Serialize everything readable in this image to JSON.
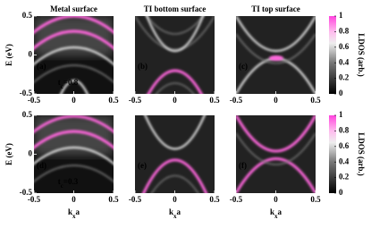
{
  "chart_data": [
    {
      "type": "heatmap",
      "title": "Metal surface",
      "panel_label": "(a)",
      "y_label": "E (eV)",
      "annotation": {
        "base": "t",
        "sub": "c",
        "text": "=0.8"
      },
      "xlim": [
        -0.5,
        0.5
      ],
      "ylim": [
        -0.5,
        0.5
      ],
      "xticks": [
        -0.5,
        0,
        0.5
      ],
      "yticks": [
        -0.5,
        0,
        0.5
      ]
    },
    {
      "type": "heatmap",
      "title": "TI bottom surface",
      "panel_label": "(b)",
      "xlim": [
        -0.5,
        0.5
      ],
      "ylim": [
        -0.5,
        0.5
      ],
      "xticks": [
        -0.5,
        0,
        0.5
      ]
    },
    {
      "type": "heatmap",
      "title": "TI top surface",
      "panel_label": "(c)",
      "xlim": [
        -0.5,
        0.5
      ],
      "ylim": [
        -0.5,
        0.5
      ],
      "xticks": [
        -0.5,
        0,
        0.5
      ],
      "colorbar": {
        "label": "LDOS (arb.)",
        "clim": [
          0,
          1
        ],
        "cticks": [
          0,
          0.2,
          0.4,
          0.6,
          0.8,
          1
        ]
      }
    },
    {
      "type": "heatmap",
      "panel_label": "(d)",
      "y_label": "E (eV)",
      "x_label": {
        "base": "k",
        "sub": "x",
        "tail": "a"
      },
      "annotation": {
        "base": "t",
        "sub": "c",
        "text": "=0.3"
      },
      "xlim": [
        -0.5,
        0.5
      ],
      "ylim": [
        -0.5,
        0.5
      ],
      "xticks": [
        -0.5,
        0,
        0.5
      ],
      "yticks": [
        -0.5,
        0,
        0.5
      ]
    },
    {
      "type": "heatmap",
      "panel_label": "(e)",
      "x_label": {
        "base": "k",
        "sub": "x",
        "tail": "a"
      },
      "xlim": [
        -0.5,
        0.5
      ],
      "ylim": [
        -0.5,
        0.5
      ],
      "xticks": [
        -0.5,
        0,
        0.5
      ]
    },
    {
      "type": "heatmap",
      "panel_label": "(f)",
      "x_label": {
        "base": "k",
        "sub": "x",
        "tail": "a"
      },
      "xlim": [
        -0.5,
        0.5
      ],
      "ylim": [
        -0.5,
        0.5
      ],
      "xticks": [
        -0.5,
        0,
        0.5
      ],
      "colorbar": {
        "label": "LDOS (arb.)",
        "clim": [
          0,
          1
        ],
        "cticks": [
          0,
          0.2,
          0.4,
          0.6,
          0.8,
          1
        ]
      }
    }
  ]
}
